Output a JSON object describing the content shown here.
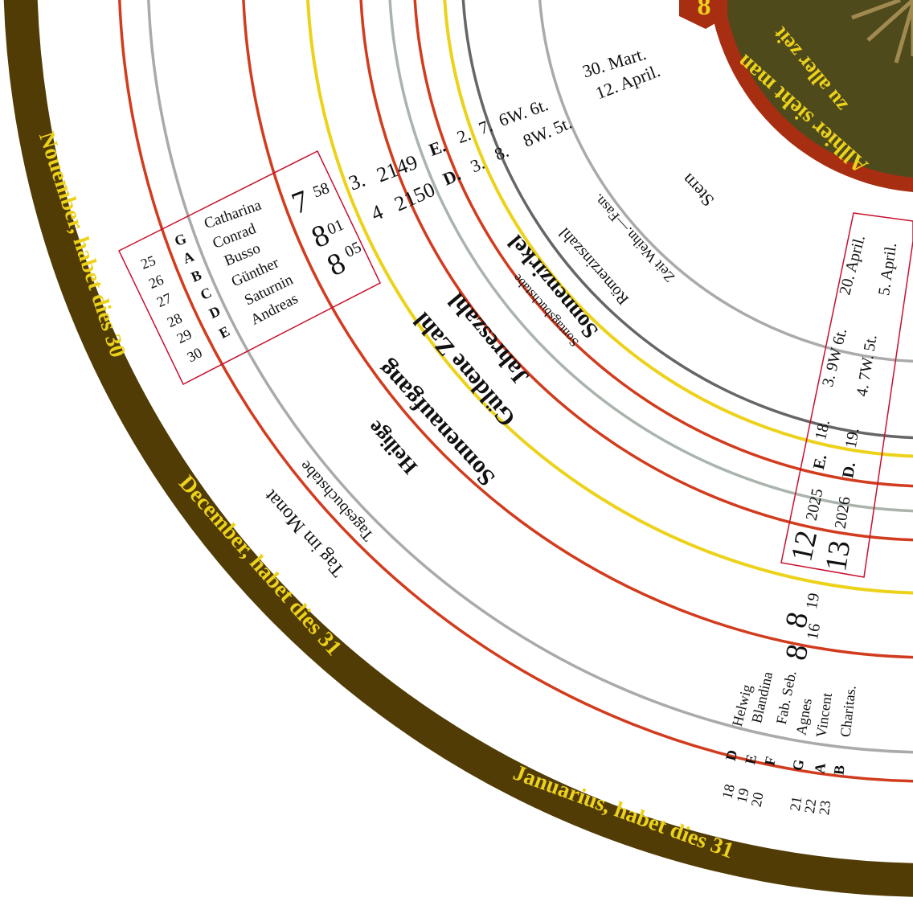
{
  "center_disc": {
    "number": "8",
    "lines": [
      "Allhier sieht man",
      "zu aller zeit"
    ]
  },
  "ring_labels": [
    "Stern",
    "Zeit Weihn.—Fasn.",
    "Römerzinszahl",
    "Sonnenzirkel",
    "Sontagsbuchstabe",
    "Jahreszahl",
    "Güldene Zahl",
    "Sonnenaufgang",
    "Heilige",
    "Tagesbuchstabe",
    "Tag im Monat"
  ],
  "months": [
    "Nouember, habet dies 30",
    "December, habet dies 31",
    "Januarius, habet dies 31"
  ],
  "november_days": {
    "days": [
      "25",
      "26",
      "27",
      "28",
      "29",
      "30"
    ],
    "letters": [
      "G",
      "A",
      "B",
      "C",
      "D",
      "E"
    ],
    "saints": [
      "Catharina",
      "Conrad",
      "Busso",
      "Günther",
      "Saturnin",
      "Andreas"
    ]
  },
  "november_sunrise": [
    {
      "hour": "7",
      "minute": "58"
    },
    {
      "hour": "8",
      "minute": "01"
    },
    {
      "hour": "8",
      "minute": "05"
    }
  ],
  "year_rows": [
    [
      "3.",
      "2149",
      "E.",
      "2.",
      "7.",
      "6W. 6t.",
      "30. Mart."
    ],
    [
      "4",
      "2150",
      "D.",
      "3.",
      "8.",
      "8W. 5t.",
      "12. April."
    ]
  ],
  "current_years": [
    [
      "20. April.",
      "3. 9W 6t.",
      "18.",
      "E.",
      "2025",
      "12"
    ],
    [
      "5. April.",
      "4. 7W. 5t.",
      "19.",
      "D.",
      "2026",
      "13"
    ]
  ],
  "january_sunrise": [
    {
      "hour": "8",
      "minute": "19"
    },
    {
      "hour": "8",
      "minute": "16"
    }
  ],
  "january_days": {
    "days": [
      "18",
      "19",
      "20",
      "21",
      "22",
      "23"
    ],
    "letters": [
      "D",
      "E",
      "F",
      "G",
      "A",
      "B"
    ],
    "saints": [
      "Helwig",
      "Blandina",
      "Fab. Seb.",
      "Agnes",
      "Vincent",
      "Charitas."
    ]
  }
}
